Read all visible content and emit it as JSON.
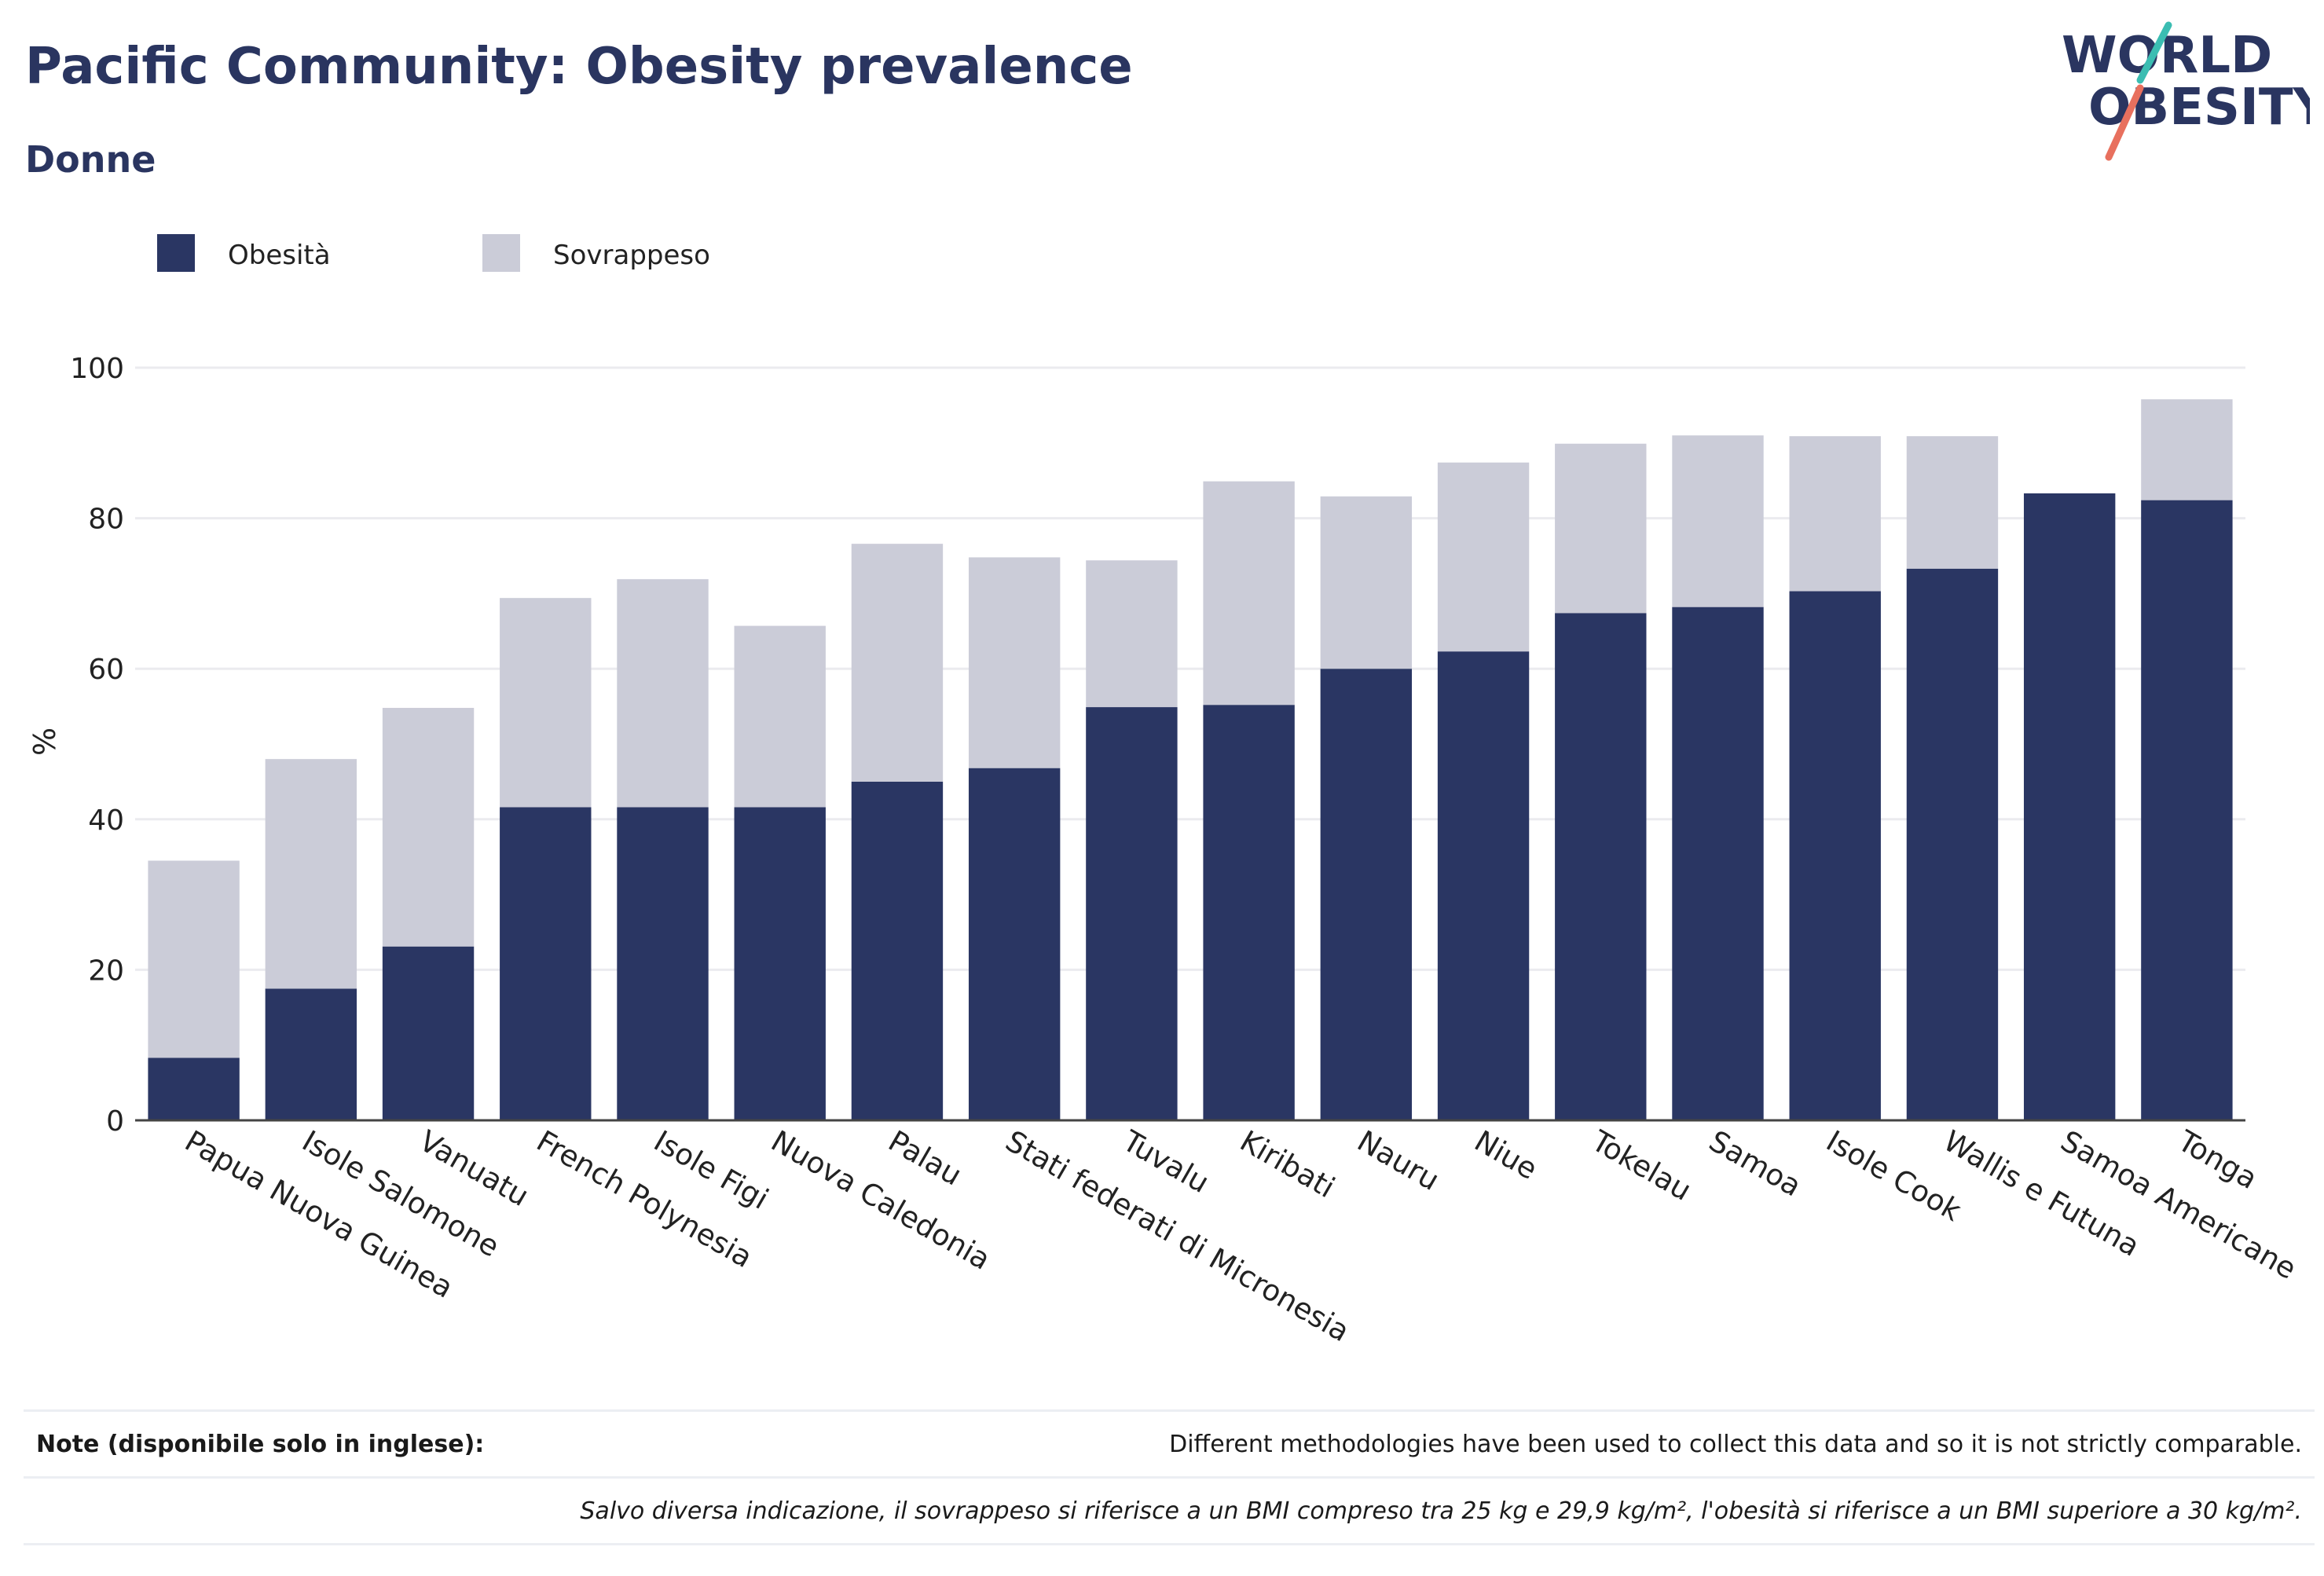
{
  "header": {
    "title": "Pacific Community: Obesity prevalence",
    "subtitle": "Donne"
  },
  "logo": {
    "line1": "WORLD",
    "line2": "OBESITY"
  },
  "notes": {
    "label": "Note (disponibile solo in inglese):",
    "text": "Different methodologies have been used to collect this data and so it is not strictly comparable.",
    "definition": "Salvo diversa indicazione, il sovrappeso si riferisce a un BMI compreso tra 25 kg e 29,9 kg/m², l'obesità si riferisce a un BMI superiore a 30 kg/m²."
  },
  "colors": {
    "obesity": "#2a3663",
    "overweight": "#cbccd8",
    "title": "#2a3560",
    "logo_teal": "#3bbdb2",
    "logo_coral": "#e8705e"
  },
  "chart_data": {
    "type": "bar",
    "stacked": true,
    "title": "Pacific Community: Obesity prevalence",
    "subtitle": "Donne",
    "xlabel": "",
    "ylabel": "%",
    "ylim": [
      0,
      100
    ],
    "yticks": [
      0,
      20,
      40,
      60,
      80,
      100
    ],
    "grid": true,
    "legend_position": "top-left",
    "categories": [
      "Papua Nuova Guinea",
      "Isole Salomone",
      "Vanuatu",
      "French Polynesia",
      "Isole Figi",
      "Nuova Caledonia",
      "Palau",
      "Stati federati di Micronesia",
      "Tuvalu",
      "Kiribati",
      "Nauru",
      "Niue",
      "Tokelau",
      "Samoa",
      "Isole Cook",
      "Wallis e Futuna",
      "Samoa Americane",
      "Tonga"
    ],
    "series": [
      {
        "name": "Obesità",
        "values": [
          8.3,
          17.5,
          23.1,
          41.6,
          41.6,
          41.6,
          45.0,
          46.8,
          54.9,
          55.2,
          60.0,
          62.3,
          67.4,
          68.2,
          70.3,
          73.3,
          83.3,
          82.4
        ]
      },
      {
        "name": "Sovrappeso",
        "values": [
          26.2,
          30.5,
          31.7,
          27.8,
          30.3,
          24.1,
          31.6,
          28.0,
          19.5,
          29.7,
          22.9,
          25.1,
          22.5,
          22.8,
          20.6,
          17.6,
          0,
          13.4
        ]
      }
    ]
  }
}
